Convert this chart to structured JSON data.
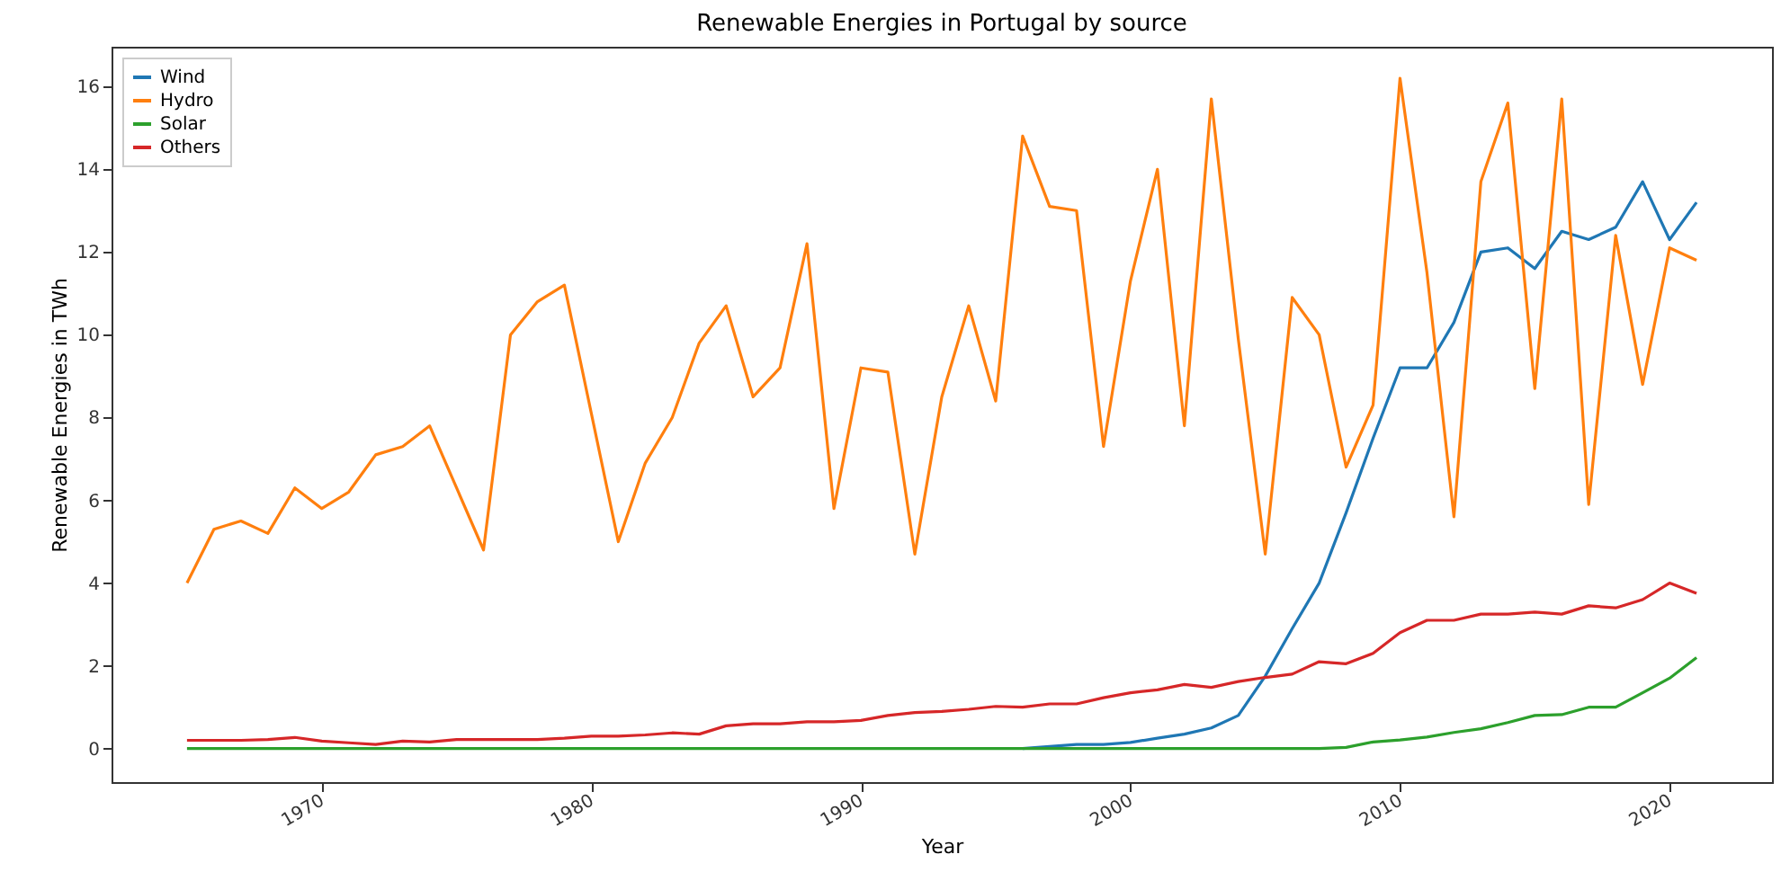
{
  "chart_data": {
    "type": "line",
    "title": "Renewable Energies in Portugal by source",
    "xlabel": "Year",
    "ylabel": "Renewable Energies in TWh",
    "x": [
      1965,
      1966,
      1967,
      1968,
      1969,
      1970,
      1971,
      1972,
      1973,
      1974,
      1975,
      1976,
      1977,
      1978,
      1979,
      1980,
      1981,
      1982,
      1983,
      1984,
      1985,
      1986,
      1987,
      1988,
      1989,
      1990,
      1991,
      1992,
      1993,
      1994,
      1995,
      1996,
      1997,
      1998,
      1999,
      2000,
      2001,
      2002,
      2003,
      2004,
      2005,
      2006,
      2007,
      2008,
      2009,
      2010,
      2011,
      2012,
      2013,
      2014,
      2015,
      2016,
      2017,
      2018,
      2019,
      2020,
      2021
    ],
    "series": [
      {
        "name": "Wind",
        "color": "#1f77b4",
        "values": [
          null,
          null,
          null,
          null,
          null,
          null,
          null,
          null,
          null,
          null,
          null,
          null,
          null,
          null,
          null,
          null,
          null,
          null,
          null,
          null,
          null,
          null,
          null,
          null,
          null,
          null,
          null,
          null,
          null,
          null,
          null,
          0,
          0.05,
          0.1,
          0.1,
          0.15,
          0.25,
          0.35,
          0.5,
          0.8,
          1.75,
          2.9,
          4.0,
          5.7,
          7.5,
          9.2,
          9.2,
          10.3,
          12.0,
          12.1,
          11.6,
          12.5,
          12.3,
          12.6,
          13.7,
          12.3,
          13.2
        ]
      },
      {
        "name": "Hydro",
        "color": "#ff7f0e",
        "values": [
          4.0,
          5.3,
          5.5,
          5.2,
          6.3,
          5.8,
          6.2,
          7.1,
          7.3,
          7.8,
          6.3,
          4.8,
          10.0,
          10.8,
          11.2,
          8.1,
          5.0,
          6.9,
          8.0,
          9.8,
          10.7,
          8.5,
          9.2,
          12.2,
          5.8,
          9.2,
          9.1,
          4.7,
          8.5,
          10.7,
          8.4,
          14.8,
          13.1,
          13.0,
          7.3,
          11.3,
          14.0,
          7.8,
          15.7,
          9.9,
          4.7,
          10.9,
          10.0,
          6.8,
          8.3,
          16.2,
          11.5,
          5.6,
          13.7,
          15.6,
          8.7,
          15.7,
          5.9,
          12.4,
          8.8,
          12.1,
          11.8
        ]
      },
      {
        "name": "Solar",
        "color": "#2ca02c",
        "values": [
          0,
          0,
          0,
          0,
          0,
          0,
          0,
          0,
          0,
          0,
          0,
          0,
          0,
          0,
          0,
          0,
          0,
          0,
          0,
          0,
          0,
          0,
          0,
          0,
          0,
          0,
          0,
          0,
          0,
          0,
          0,
          0,
          0,
          0,
          0,
          0,
          0,
          0,
          0,
          0,
          0,
          0,
          0,
          0.03,
          0.16,
          0.21,
          0.28,
          0.39,
          0.48,
          0.63,
          0.8,
          0.82,
          1.0,
          1.0,
          1.35,
          1.7,
          2.2
        ]
      },
      {
        "name": "Others",
        "color": "#d62728",
        "values": [
          0.2,
          0.2,
          0.2,
          0.22,
          0.27,
          0.18,
          0.14,
          0.1,
          0.18,
          0.16,
          0.22,
          0.22,
          0.22,
          0.22,
          0.25,
          0.3,
          0.3,
          0.33,
          0.38,
          0.35,
          0.55,
          0.6,
          0.6,
          0.65,
          0.65,
          0.68,
          0.8,
          0.87,
          0.9,
          0.95,
          1.02,
          1.0,
          1.08,
          1.08,
          1.23,
          1.35,
          1.42,
          1.55,
          1.48,
          1.62,
          1.72,
          1.8,
          2.1,
          2.05,
          2.3,
          2.8,
          3.1,
          3.1,
          3.25,
          3.25,
          3.3,
          3.25,
          3.45,
          3.4,
          3.6,
          4.0,
          3.75
        ]
      }
    ],
    "xlim": [
      1962.2,
      2023.8
    ],
    "xticks": [
      1970,
      1980,
      1990,
      2000,
      2010,
      2020
    ],
    "ylim": [
      -0.81,
      16.96
    ],
    "yticks": [
      0,
      2,
      4,
      6,
      8,
      10,
      12,
      14,
      16
    ],
    "legend": "top left"
  }
}
